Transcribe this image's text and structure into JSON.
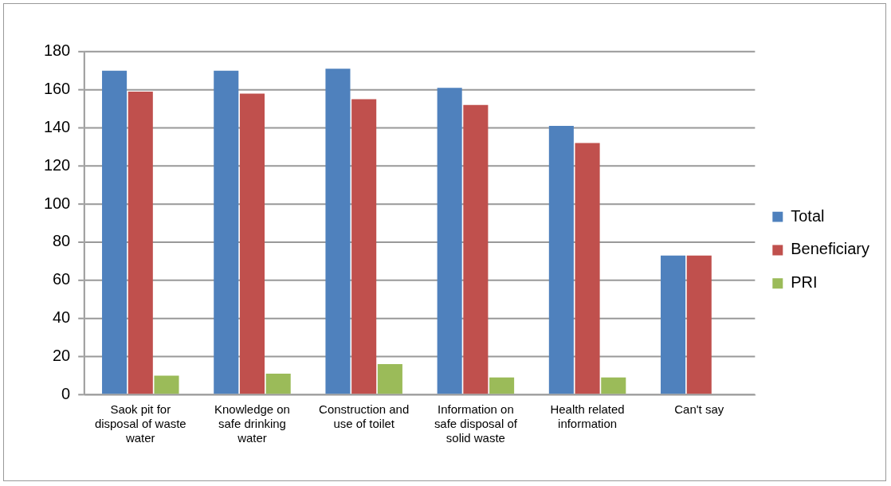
{
  "chart_data": {
    "type": "bar",
    "categories": [
      "Saok pit for disposal of waste water",
      "Knowledge on safe drinking water",
      "Construction and use of toilet",
      "Information on safe disposal of solid waste",
      "Health related information",
      "Can't say"
    ],
    "series": [
      {
        "name": "Total",
        "color": "#4f81bd",
        "values": [
          170,
          170,
          171,
          161,
          141,
          73
        ]
      },
      {
        "name": "Beneficiary",
        "color": "#c0504d",
        "values": [
          159,
          158,
          155,
          152,
          132,
          73
        ]
      },
      {
        "name": "PRI",
        "color": "#9bbb59",
        "values": [
          10,
          11,
          16,
          9,
          9,
          0
        ]
      }
    ],
    "ylim": [
      0,
      180
    ],
    "yticks": [
      0,
      20,
      40,
      60,
      80,
      100,
      120,
      140,
      160,
      180
    ],
    "grid": "y",
    "legend": "right"
  }
}
